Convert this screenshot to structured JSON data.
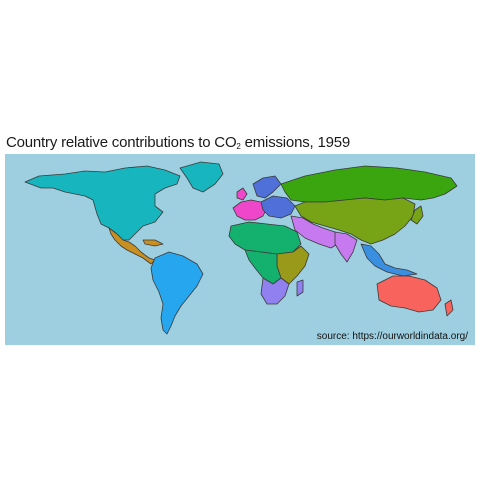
{
  "title": {
    "prefix": "Country relative contributions to CO",
    "subscript": "2",
    "suffix": " emissions,  1959"
  },
  "source": "source: https://ourworldindata.org/",
  "colors": {
    "ocean": "#9ecfe0",
    "north_america": "#17b5bd",
    "central_america": "#c99021",
    "south_america": "#27a6f0",
    "europe_west": "#ef47c9",
    "europe_east": "#4f6fd9",
    "russia": "#3aa50f",
    "asia": "#77a316",
    "middle_east": "#c779ef",
    "africa_north": "#14b06e",
    "africa_east": "#9a9a1a",
    "africa_south": "#9080f0",
    "oceania": "#f8635e",
    "new_zealand": "#f8635e",
    "southeast_asia": "#3a8fe0",
    "polar": "#ffffff"
  }
}
